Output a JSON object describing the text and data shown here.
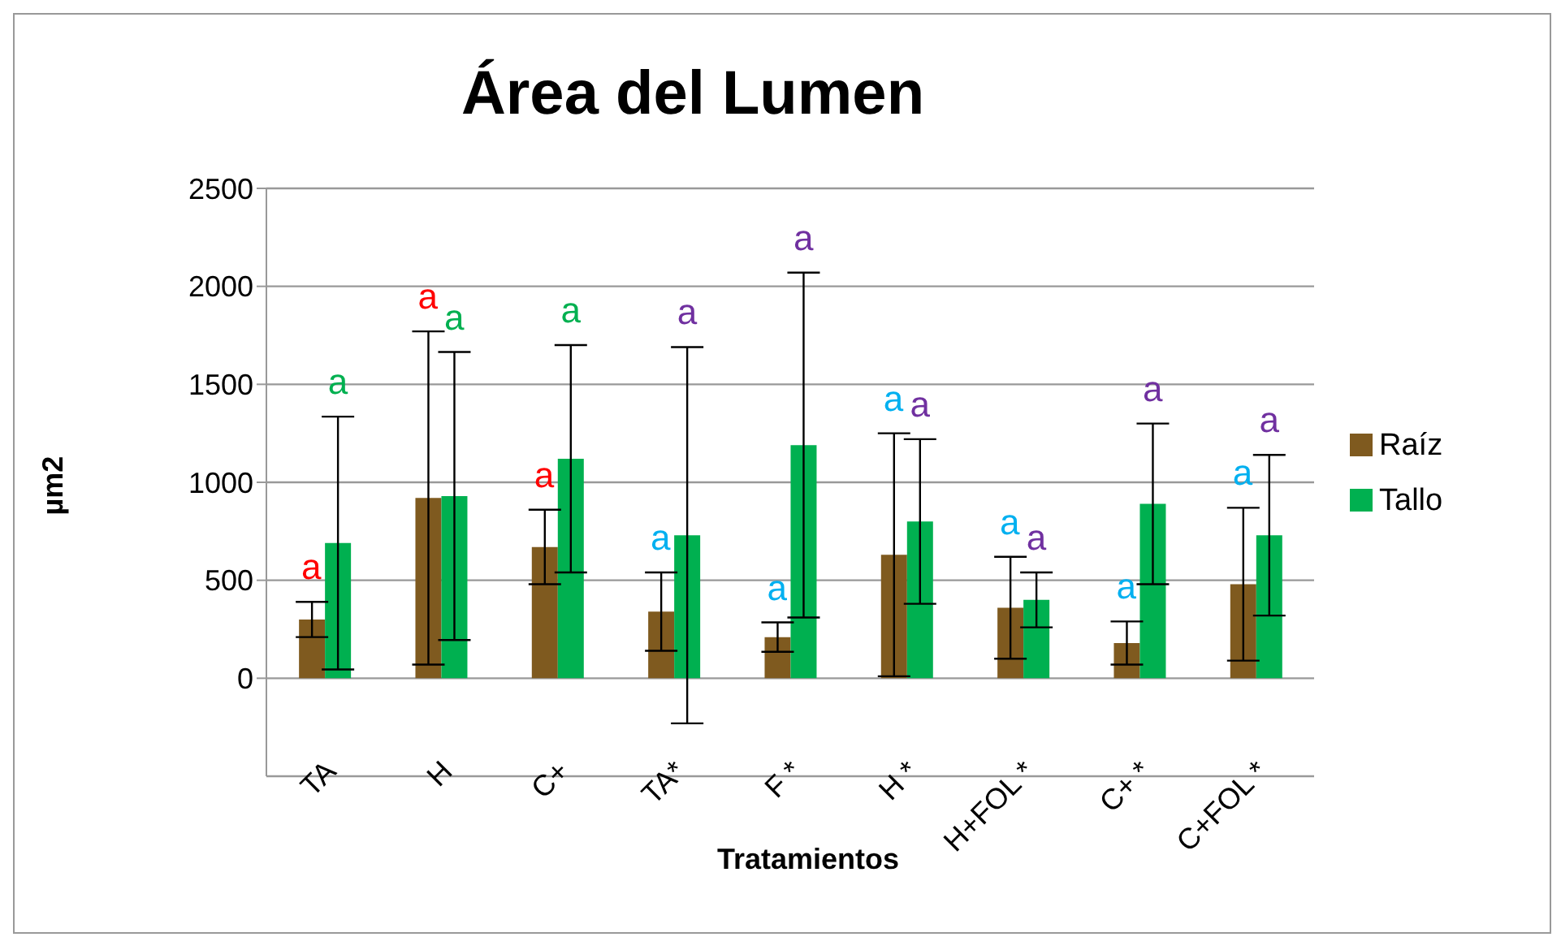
{
  "chart_data": {
    "type": "bar",
    "title": "Área del Lumen",
    "xlabel": "Tratamientos",
    "ylabel": "µm2",
    "categories": [
      "TA",
      "H",
      "C+",
      "TA*",
      "F *",
      "H *",
      "H+FOL *",
      "C+ *",
      "C+FOL *"
    ],
    "series": [
      {
        "name": "Raíz",
        "color": "#7f5a1f",
        "values": [
          300,
          920,
          670,
          340,
          210,
          630,
          360,
          180,
          480
        ],
        "errors": [
          90,
          850,
          190,
          200,
          75,
          620,
          260,
          110,
          390
        ]
      },
      {
        "name": "Tallo",
        "color": "#00b050",
        "values": [
          690,
          930,
          1120,
          730,
          1190,
          800,
          400,
          890,
          730
        ],
        "errors": [
          645,
          735,
          580,
          960,
          880,
          420,
          140,
          410,
          410
        ]
      }
    ],
    "ylim": [
      -500,
      2500
    ],
    "yticks": [
      0,
      500,
      1000,
      1500,
      2000,
      2500
    ],
    "grid": "y",
    "legend": "right",
    "annotations": [
      "a",
      "a",
      "a",
      "a",
      "a",
      "a",
      "a",
      "a",
      "a",
      "a",
      "a",
      "a",
      "a",
      "a",
      "a",
      "a",
      "a",
      "a"
    ]
  }
}
